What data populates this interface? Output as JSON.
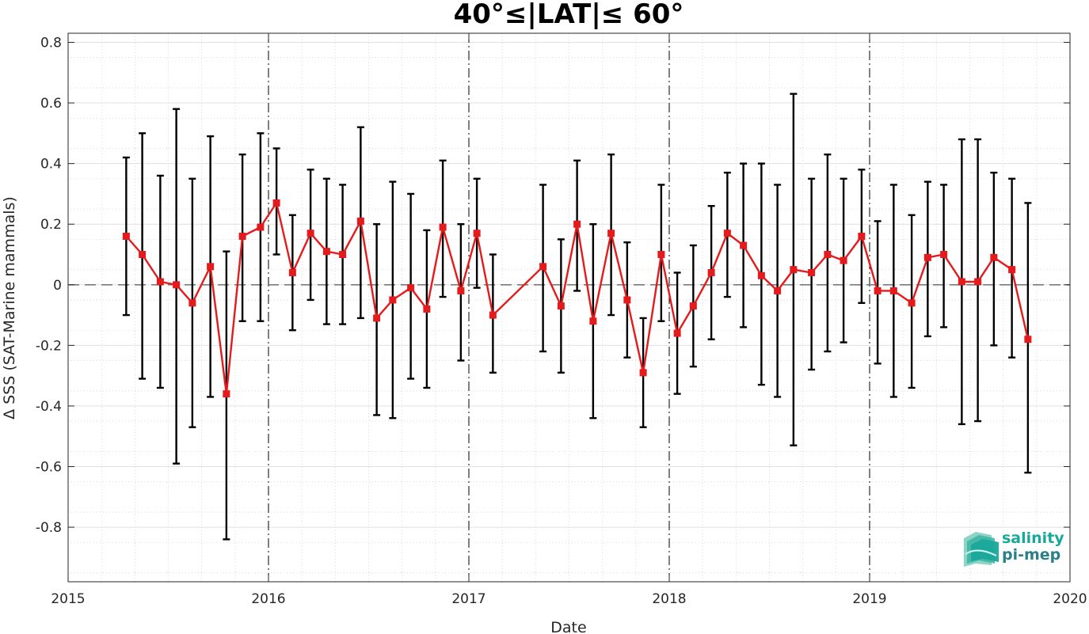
{
  "chart_data": {
    "type": "line",
    "title": "40°≤|LAT|≤ 60°",
    "xlabel": "Date",
    "ylabel": "Δ SSS (SAT-Marine mammals)",
    "xlim": [
      2015,
      2020
    ],
    "ylim": [
      -0.98,
      0.83
    ],
    "x_ticks": [
      2015,
      2016,
      2017,
      2018,
      2019,
      2020
    ],
    "x_tick_labels": [
      "2015",
      "2016",
      "2017",
      "2018",
      "2019",
      "2020"
    ],
    "y_ticks": [
      -0.8,
      -0.6,
      -0.4,
      -0.2,
      0,
      0.2,
      0.4,
      0.6,
      0.8
    ],
    "y_tick_labels": [
      "-0.8",
      "-0.6",
      "-0.4",
      "-0.2",
      "0",
      "0.2",
      "0.4",
      "0.6",
      "0.8"
    ],
    "grid": true,
    "minor_grid": true,
    "year_boundary_lines": [
      2016,
      2017,
      2018,
      2019
    ],
    "zero_line": 0,
    "series": [
      {
        "color": "#e41a1c",
        "marker": "square",
        "errorbar_color": "#000000",
        "points": [
          {
            "x": 2015.29,
            "y": 0.16,
            "lo": -0.1,
            "hi": 0.42
          },
          {
            "x": 2015.37,
            "y": 0.1,
            "lo": -0.31,
            "hi": 0.5
          },
          {
            "x": 2015.46,
            "y": 0.01,
            "lo": -0.34,
            "hi": 0.36
          },
          {
            "x": 2015.54,
            "y": 0.0,
            "lo": -0.59,
            "hi": 0.58
          },
          {
            "x": 2015.62,
            "y": -0.06,
            "lo": -0.47,
            "hi": 0.35
          },
          {
            "x": 2015.71,
            "y": 0.06,
            "lo": -0.37,
            "hi": 0.49
          },
          {
            "x": 2015.79,
            "y": -0.36,
            "lo": -0.84,
            "hi": 0.11
          },
          {
            "x": 2015.87,
            "y": 0.16,
            "lo": -0.12,
            "hi": 0.43
          },
          {
            "x": 2015.96,
            "y": 0.19,
            "lo": -0.12,
            "hi": 0.5
          },
          {
            "x": 2016.04,
            "y": 0.27,
            "lo": 0.1,
            "hi": 0.45
          },
          {
            "x": 2016.12,
            "y": 0.04,
            "lo": -0.15,
            "hi": 0.23
          },
          {
            "x": 2016.21,
            "y": 0.17,
            "lo": -0.05,
            "hi": 0.38
          },
          {
            "x": 2016.29,
            "y": 0.11,
            "lo": -0.13,
            "hi": 0.35
          },
          {
            "x": 2016.37,
            "y": 0.1,
            "lo": -0.13,
            "hi": 0.33
          },
          {
            "x": 2016.46,
            "y": 0.21,
            "lo": -0.11,
            "hi": 0.52
          },
          {
            "x": 2016.54,
            "y": -0.11,
            "lo": -0.43,
            "hi": 0.2
          },
          {
            "x": 2016.62,
            "y": -0.05,
            "lo": -0.44,
            "hi": 0.34
          },
          {
            "x": 2016.71,
            "y": -0.01,
            "lo": -0.31,
            "hi": 0.3
          },
          {
            "x": 2016.79,
            "y": -0.08,
            "lo": -0.34,
            "hi": 0.18
          },
          {
            "x": 2016.87,
            "y": 0.19,
            "lo": -0.04,
            "hi": 0.41
          },
          {
            "x": 2016.96,
            "y": -0.02,
            "lo": -0.25,
            "hi": 0.2
          },
          {
            "x": 2017.04,
            "y": 0.17,
            "lo": -0.01,
            "hi": 0.35
          },
          {
            "x": 2017.12,
            "y": -0.1,
            "lo": -0.29,
            "hi": 0.1
          },
          {
            "x": 2017.37,
            "y": 0.06,
            "lo": -0.22,
            "hi": 0.33
          },
          {
            "x": 2017.46,
            "y": -0.07,
            "lo": -0.29,
            "hi": 0.15
          },
          {
            "x": 2017.54,
            "y": 0.2,
            "lo": -0.02,
            "hi": 0.41
          },
          {
            "x": 2017.62,
            "y": -0.12,
            "lo": -0.44,
            "hi": 0.2
          },
          {
            "x": 2017.71,
            "y": 0.17,
            "lo": -0.1,
            "hi": 0.43
          },
          {
            "x": 2017.79,
            "y": -0.05,
            "lo": -0.24,
            "hi": 0.14
          },
          {
            "x": 2017.87,
            "y": -0.29,
            "lo": -0.47,
            "hi": -0.11
          },
          {
            "x": 2017.96,
            "y": 0.1,
            "lo": -0.12,
            "hi": 0.33
          },
          {
            "x": 2018.04,
            "y": -0.16,
            "lo": -0.36,
            "hi": 0.04
          },
          {
            "x": 2018.12,
            "y": -0.07,
            "lo": -0.27,
            "hi": 0.13
          },
          {
            "x": 2018.21,
            "y": 0.04,
            "lo": -0.18,
            "hi": 0.26
          },
          {
            "x": 2018.29,
            "y": 0.17,
            "lo": -0.04,
            "hi": 0.37
          },
          {
            "x": 2018.37,
            "y": 0.13,
            "lo": -0.14,
            "hi": 0.4
          },
          {
            "x": 2018.46,
            "y": 0.03,
            "lo": -0.33,
            "hi": 0.4
          },
          {
            "x": 2018.54,
            "y": -0.02,
            "lo": -0.37,
            "hi": 0.33
          },
          {
            "x": 2018.62,
            "y": 0.05,
            "lo": -0.53,
            "hi": 0.63
          },
          {
            "x": 2018.71,
            "y": 0.04,
            "lo": -0.28,
            "hi": 0.35
          },
          {
            "x": 2018.79,
            "y": 0.1,
            "lo": -0.22,
            "hi": 0.43
          },
          {
            "x": 2018.87,
            "y": 0.08,
            "lo": -0.19,
            "hi": 0.35
          },
          {
            "x": 2018.96,
            "y": 0.16,
            "lo": -0.06,
            "hi": 0.38
          },
          {
            "x": 2019.04,
            "y": -0.02,
            "lo": -0.26,
            "hi": 0.21
          },
          {
            "x": 2019.12,
            "y": -0.02,
            "lo": -0.37,
            "hi": 0.33
          },
          {
            "x": 2019.21,
            "y": -0.06,
            "lo": -0.34,
            "hi": 0.23
          },
          {
            "x": 2019.29,
            "y": 0.09,
            "lo": -0.17,
            "hi": 0.34
          },
          {
            "x": 2019.37,
            "y": 0.1,
            "lo": -0.14,
            "hi": 0.33
          },
          {
            "x": 2019.46,
            "y": 0.01,
            "lo": -0.46,
            "hi": 0.48
          },
          {
            "x": 2019.54,
            "y": 0.01,
            "lo": -0.45,
            "hi": 0.48
          },
          {
            "x": 2019.62,
            "y": 0.09,
            "lo": -0.2,
            "hi": 0.37
          },
          {
            "x": 2019.71,
            "y": 0.05,
            "lo": -0.24,
            "hi": 0.35
          },
          {
            "x": 2019.79,
            "y": -0.18,
            "lo": -0.62,
            "hi": 0.27
          }
        ]
      }
    ]
  },
  "logo": {
    "line1": "salinity",
    "line2": "pi-mep",
    "color1": "#1aa89a",
    "color2": "#2a7f88"
  }
}
